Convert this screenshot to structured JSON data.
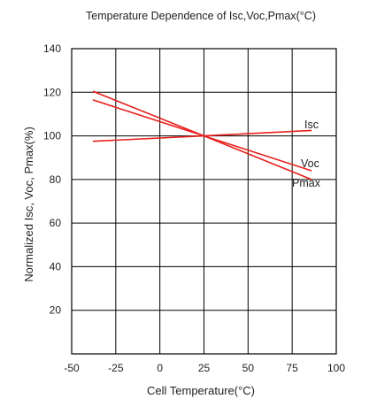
{
  "chart_data": {
    "type": "line",
    "title": "Temperature Dependence of Isc,Voc,Pmax(°C)",
    "xlabel": "Cell Temperature(°C)",
    "ylabel": "Normalized Isc, Voc, Pmax(%)",
    "xlim": [
      -50,
      100
    ],
    "ylim": [
      0,
      140
    ],
    "x_ticks": [
      "-50",
      "-25",
      "0",
      "25",
      "50",
      "75",
      "100"
    ],
    "y_ticks": [
      "20",
      "40",
      "60",
      "80",
      "100",
      "120",
      "140"
    ],
    "grid": true,
    "line_color": "#e8201c",
    "series": [
      {
        "name": "Isc",
        "x": [
          -38,
          25,
          86
        ],
        "y": [
          97.5,
          100,
          102.5
        ]
      },
      {
        "name": "Voc",
        "x": [
          -38,
          25,
          86
        ],
        "y": [
          116.5,
          100,
          84
        ]
      },
      {
        "name": "Pmax",
        "x": [
          -38,
          25,
          86
        ],
        "y": [
          120.5,
          100,
          80
        ]
      }
    ]
  }
}
